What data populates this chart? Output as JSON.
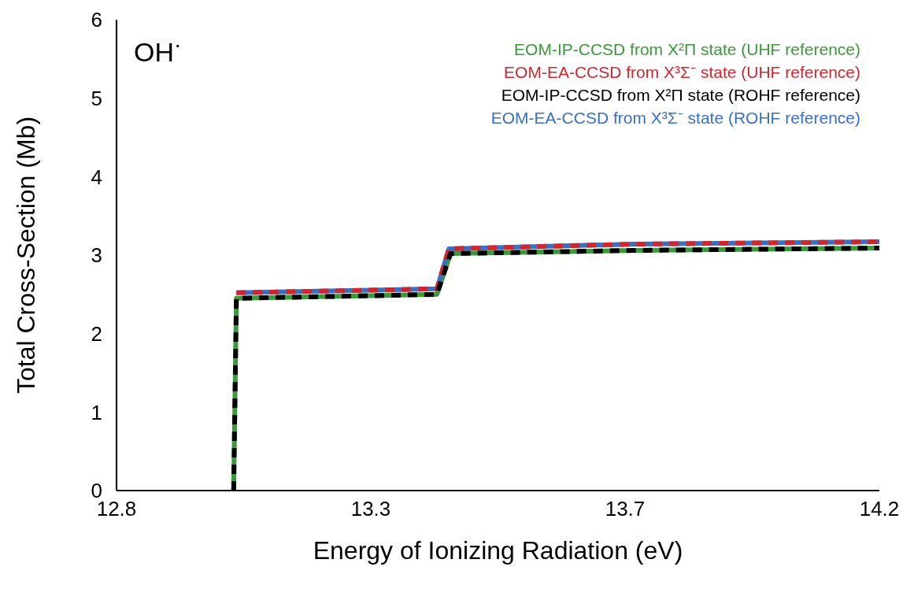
{
  "chart_data": {
    "type": "line",
    "title": "OH$^{·}$",
    "xlabel": "Energy of Ionizing Radiation (eV)",
    "ylabel": "Total Cross-Section (Mb)",
    "xlim": [
      12.8,
      14.2
    ],
    "xticks": [
      {
        "value": 12.8,
        "label": "12.8"
      },
      {
        "value": 13.2667,
        "label": "13.3"
      },
      {
        "value": 13.7333,
        "label": "13.7"
      },
      {
        "value": 14.2,
        "label": "14.2"
      }
    ],
    "ylim": [
      0,
      6
    ],
    "yticks": [
      0,
      1,
      2,
      3,
      4,
      5,
      6
    ],
    "grid": false,
    "legend": "top right",
    "series": [
      {
        "name": "EOM-IP-CCSD from X²Π state (UHF reference)",
        "color": "#3a9a3a",
        "line_style": "solid",
        "x": [
          13.015,
          13.02,
          13.388,
          13.413,
          13.75,
          14.2
        ],
        "values": [
          0,
          2.45,
          2.5,
          3.02,
          3.06,
          3.09
        ]
      },
      {
        "name": "EOM-EA-CCSD from X³Σ⁻ state (UHF reference)",
        "color": "#d2262c",
        "line_style": "dashed",
        "x": [
          13.02,
          13.388,
          13.41,
          13.75,
          14.2
        ],
        "values": [
          2.52,
          2.57,
          3.08,
          3.14,
          3.17
        ]
      },
      {
        "name": "EOM-IP-CCSD from X²Π state (ROHF reference)",
        "color": "#000000",
        "line_style": "dashed",
        "x": [
          13.015,
          13.02,
          13.388,
          13.413,
          13.75,
          14.2
        ],
        "values": [
          0,
          2.45,
          2.5,
          3.02,
          3.06,
          3.09
        ]
      },
      {
        "name": "EOM-EA-CCSD from X³Σ⁻ state (ROHF reference)",
        "color": "#3b6fc4",
        "line_style": "solid",
        "x": [
          13.02,
          13.388,
          13.41,
          13.75,
          14.2
        ],
        "values": [
          2.52,
          2.57,
          3.08,
          3.14,
          3.17
        ]
      }
    ]
  }
}
